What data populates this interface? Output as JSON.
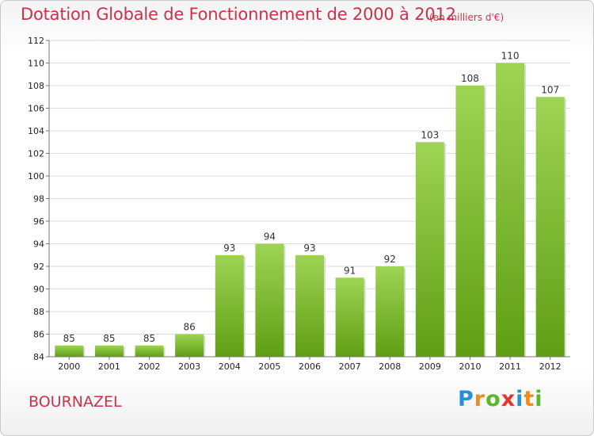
{
  "header": {
    "title": "Dotation Globale de Fonctionnement de 2000 à 2012",
    "subtitle": "(en milliers d'€)"
  },
  "footer": {
    "commune": "BOURNAZEL",
    "logo": "Proxiti"
  },
  "colors": {
    "title": "#c8324a",
    "bar_top": "#9ed454",
    "bar_bottom": "#5f9e14",
    "grid": "#dddddd"
  },
  "chart_data": {
    "type": "bar",
    "categories": [
      "2000",
      "2001",
      "2002",
      "2003",
      "2004",
      "2005",
      "2006",
      "2007",
      "2008",
      "2009",
      "2010",
      "2011",
      "2012"
    ],
    "values": [
      85,
      85,
      85,
      86,
      93,
      94,
      93,
      91,
      92,
      103,
      108,
      110,
      107
    ],
    "ylim": [
      84,
      112
    ],
    "yticks": [
      84,
      86,
      88,
      90,
      92,
      94,
      96,
      98,
      100,
      102,
      104,
      106,
      108,
      110,
      112
    ],
    "grid": true,
    "data_labels": true
  }
}
